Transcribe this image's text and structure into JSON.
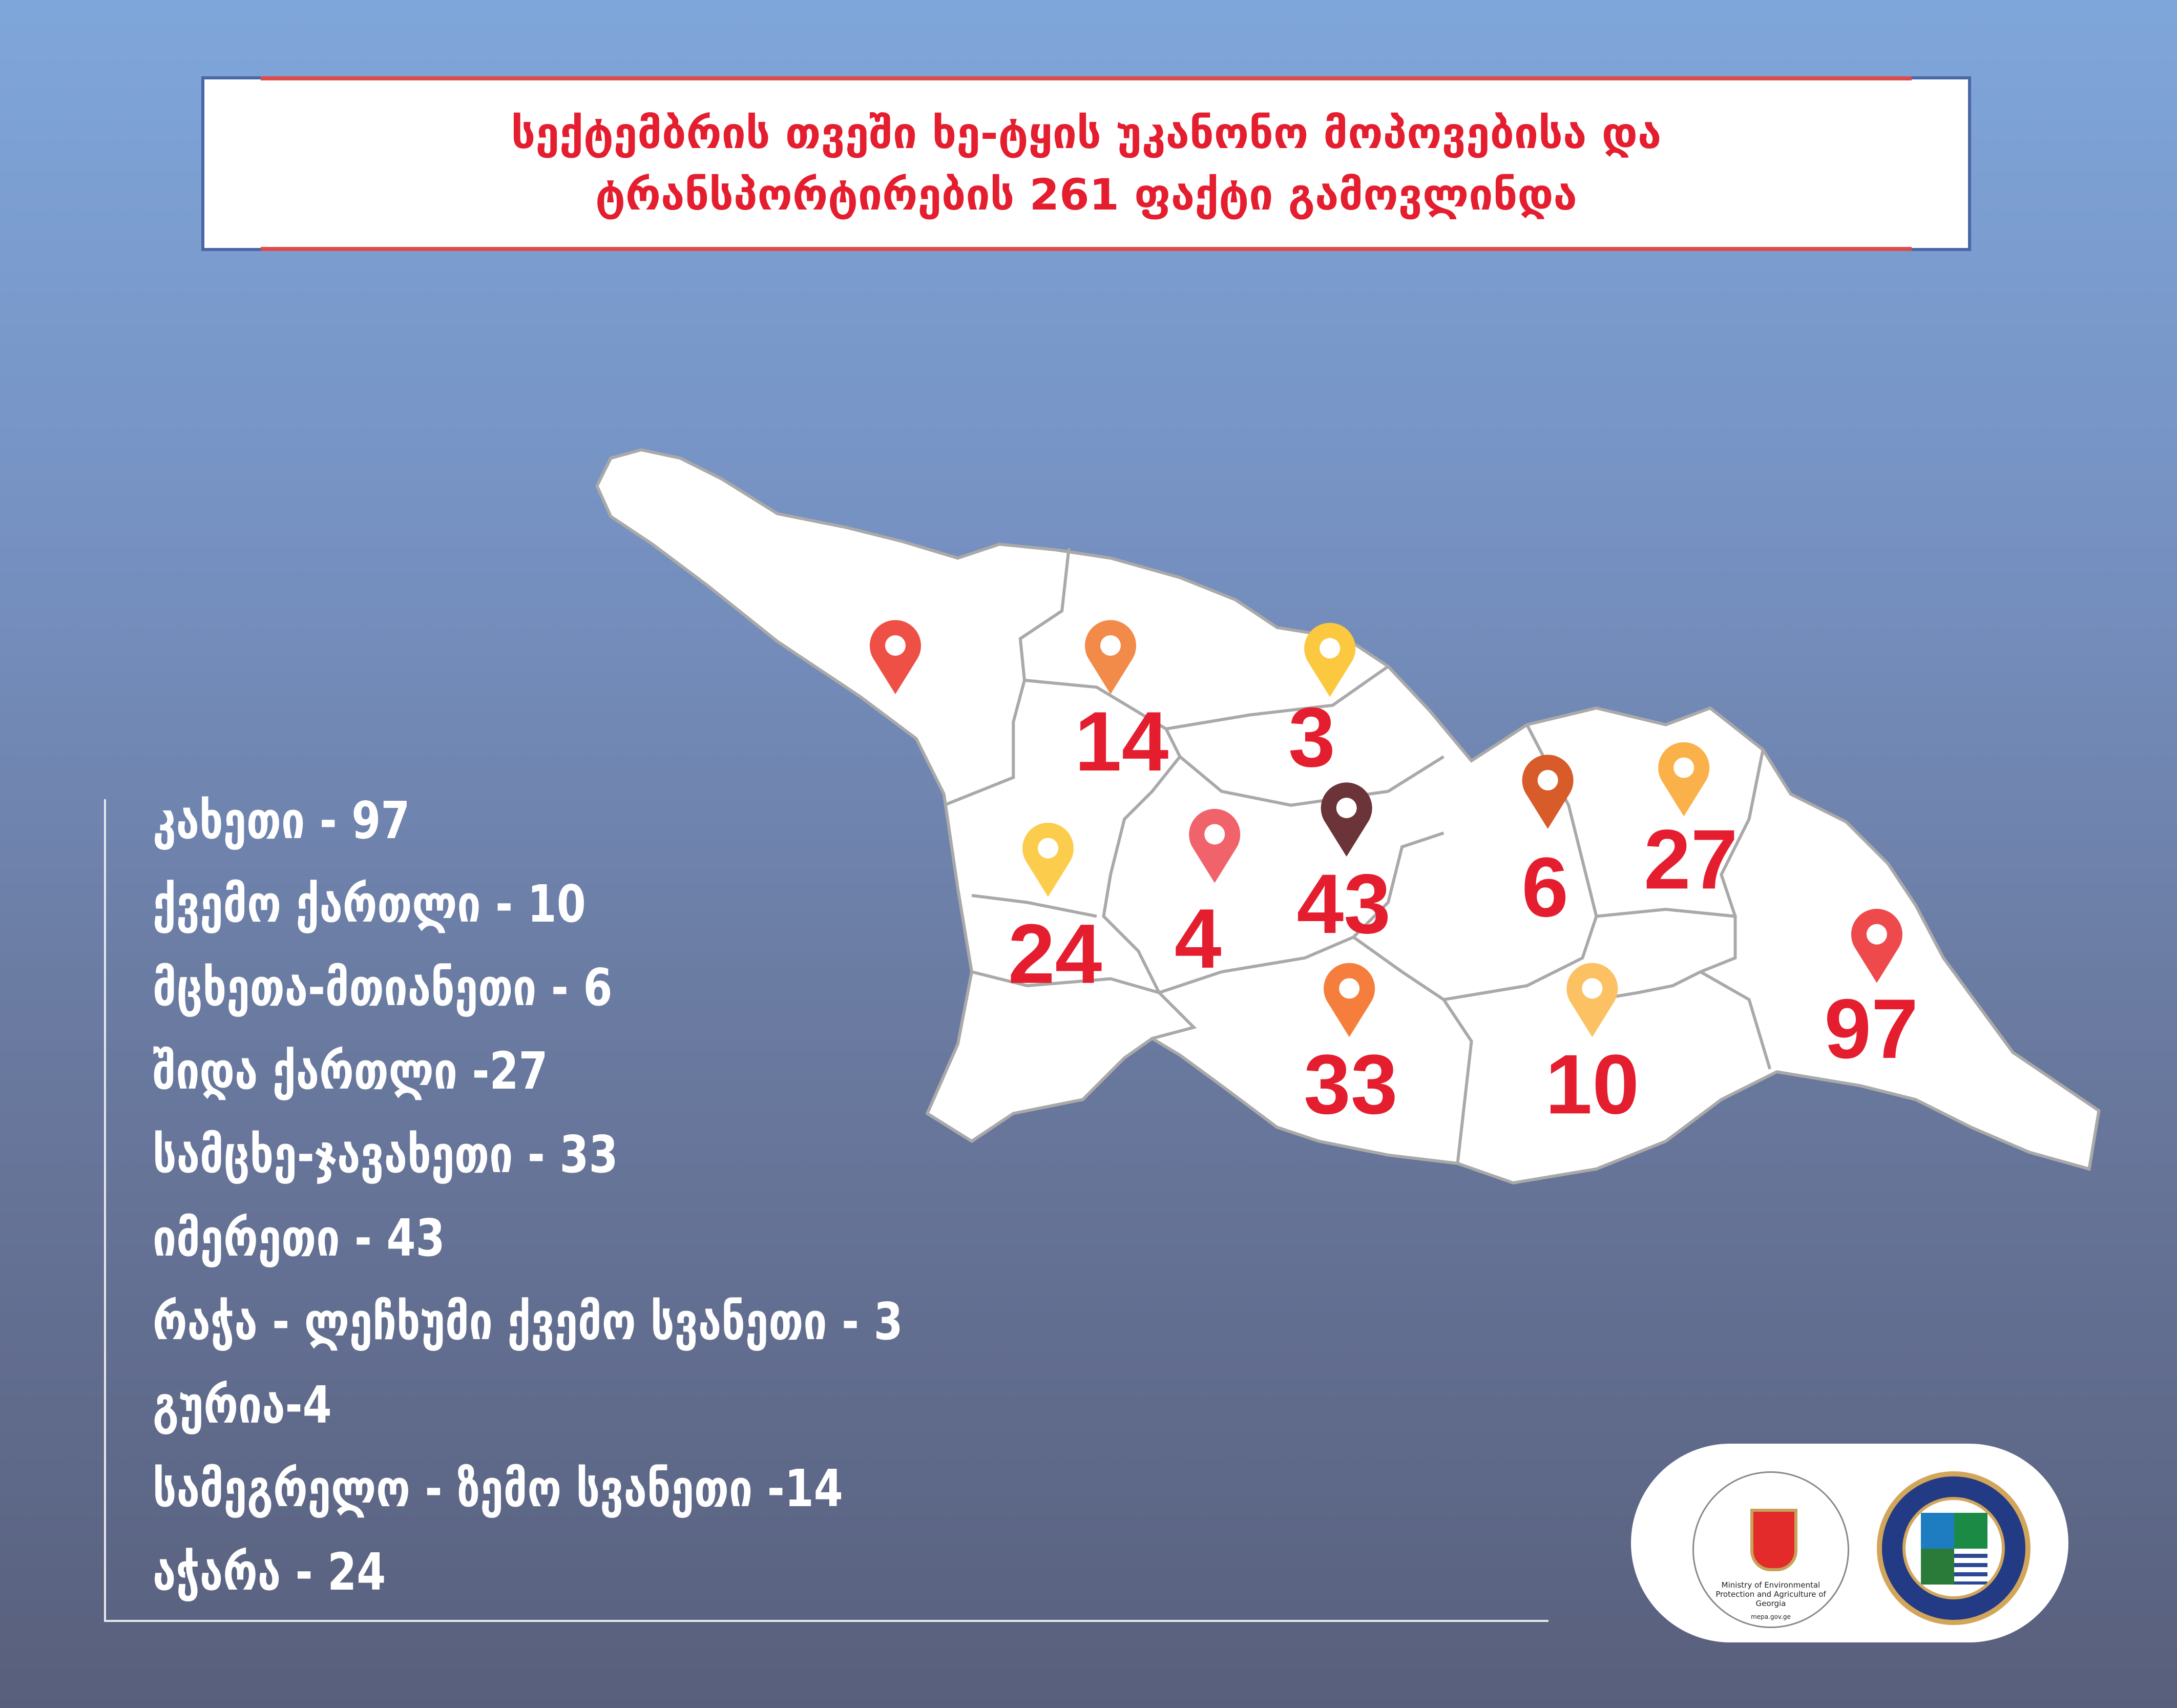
{
  "title": {
    "line1": "სექტემბრის თვეში ხე-ტყის უკანონო მოპოვებისა და",
    "line2": "ტრანსპორტირების 261 ფაქტი გამოვლინდა"
  },
  "regions": [
    "კახეთი -  97",
    "ქვემო ქართლი - 10",
    "მცხეთა-მთიანეთი - 6",
    "შიდა ქართლი -27",
    "სამცხე-ჯავახეთი - 33",
    "იმერეთი - 43",
    "რაჭა - ლეჩხუმი ქვემო სვანეთი - 3",
    "გურია-4",
    "სამეგრელო - ზემო სვანეთი -14",
    "აჭარა - 24"
  ],
  "map": {
    "fill": "#ffffff",
    "border": "#a9a9a9",
    "label_color": "#e41e2f",
    "markers": [
      {
        "value": "",
        "color": "#ef5046"
      },
      {
        "value": "14",
        "color": "#f28a4a"
      },
      {
        "value": "3",
        "color": "#fbc840"
      },
      {
        "value": "43",
        "color": "#6b3438"
      },
      {
        "value": "6",
        "color": "#d85b2a"
      },
      {
        "value": "27",
        "color": "#fbb14a"
      },
      {
        "value": "97",
        "color": "#ee4a4c"
      },
      {
        "value": "24",
        "color": "#fccd4c"
      },
      {
        "value": "4",
        "color": "#f0636a"
      },
      {
        "value": "33",
        "color": "#f57e3c"
      },
      {
        "value": "10",
        "color": "#fbc163"
      }
    ]
  },
  "logos": {
    "ministry_text": "Ministry of Environmental Protection and Agriculture of Georgia",
    "ministry_url": "mepa.gov.ge"
  }
}
